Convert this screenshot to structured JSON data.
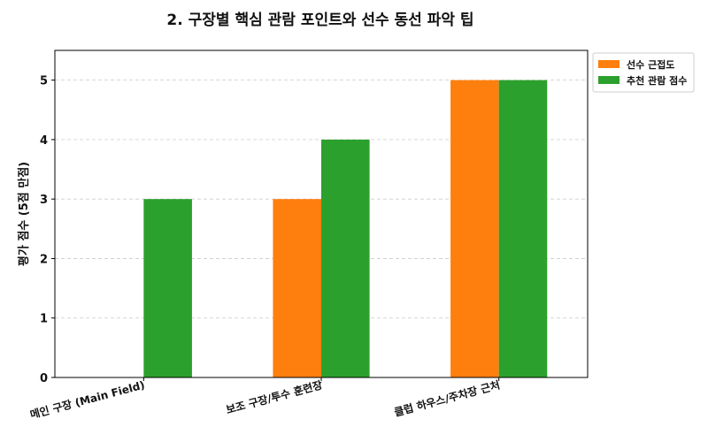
{
  "chart_data": {
    "type": "bar",
    "title": "2. 구장별 핵심 관람 포인트와 선수 동선 파악 팁",
    "xlabel": "",
    "ylabel": "평가 점수 (5점 만점)",
    "categories": [
      "메인 구장 (Main Field)",
      "보조 구장/투수 훈련장",
      "클럽 하우스/주차장 근처"
    ],
    "series": [
      {
        "name": "선수 근접도",
        "values": [
          0,
          3,
          5
        ],
        "color": "#ff7f0e"
      },
      {
        "name": "추천 관람 점수",
        "values": [
          3,
          4,
          5
        ],
        "color": "#2ca02c"
      }
    ],
    "ylim": [
      0,
      5.5
    ],
    "yticks": [
      "0",
      "1",
      "2",
      "3",
      "4",
      "5"
    ],
    "grid": "y-dashed",
    "legend": "outside-top-right"
  }
}
